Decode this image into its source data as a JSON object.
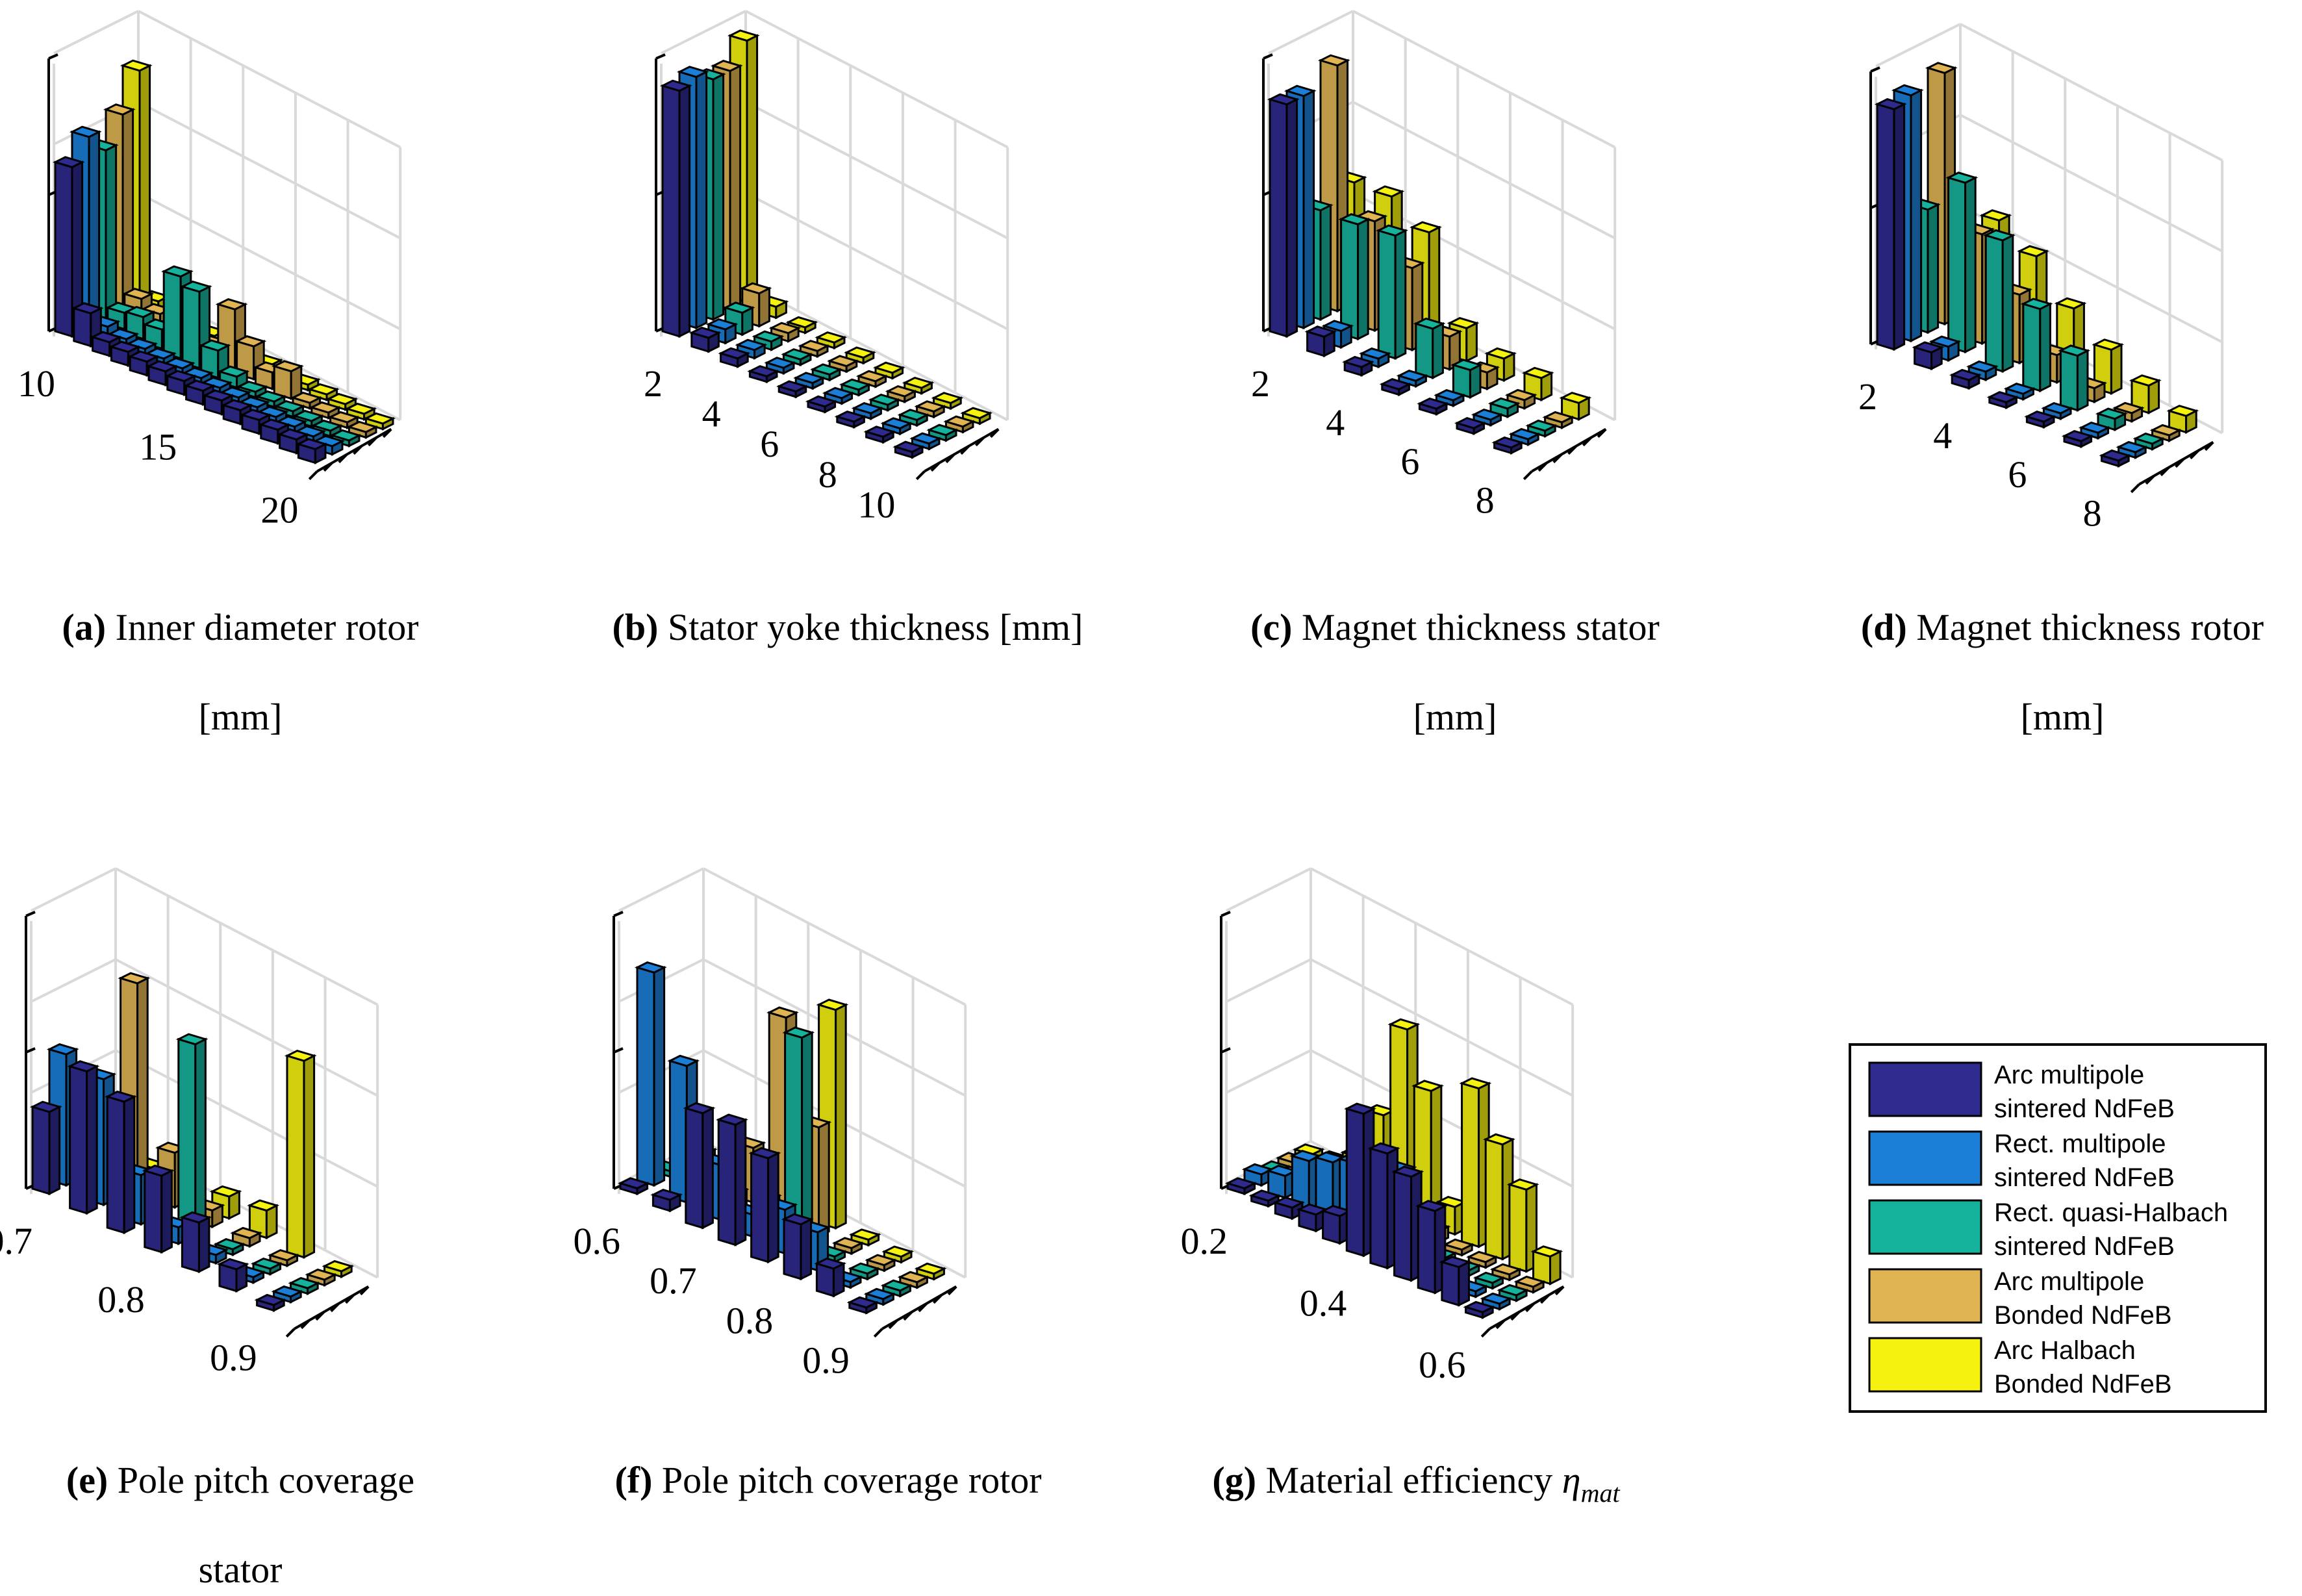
{
  "colors": {
    "Arc multipole sintered NdFeB": "#2e2a8e",
    "Rect. multipole sintered NdFeB": "#1b7fd8",
    "Rect. quasi-Halbach sintered NdFeB": "#15b39b",
    "Arc multipole Bonded NdFeB": "#e0b452",
    "Arc Halbach Bonded NdFeB": "#f5f20f",
    "material-efficiency-extra": "#9cc26a"
  },
  "legend": {
    "items": [
      {
        "line1": "Arc multipole",
        "line2": "sintered NdFeB",
        "color": "#2e2a8e"
      },
      {
        "line1": "Rect. multipole",
        "line2": "sintered NdFeB",
        "color": "#1b7fd8"
      },
      {
        "line1": "Rect. quasi-Halbach",
        "line2": "sintered NdFeB",
        "color": "#15b39b"
      },
      {
        "line1": "Arc multipole",
        "line2": "Bonded NdFeB",
        "color": "#e0b452"
      },
      {
        "line1": "Arc Halbach",
        "line2": "Bonded NdFeB",
        "color": "#f5f20f"
      }
    ]
  },
  "chart_data": [
    {
      "type": "bar3d",
      "caption_letter": "(a)",
      "caption_text": "Inner diameter rotor",
      "caption_line2": "[mm]",
      "x_ticks": [
        "10",
        "15",
        "20"
      ],
      "categories": [
        "8",
        "9",
        "10",
        "11",
        "12",
        "13",
        "14",
        "15",
        "16",
        "17",
        "18",
        "19",
        "20",
        "21"
      ],
      "series": [
        {
          "name": "Arc multipole sintered NdFeB",
          "values": [
            0.62,
            0.12,
            0.05,
            0.05,
            0.05,
            0.05,
            0.05,
            0.05,
            0.05,
            0.05,
            0.05,
            0.05,
            0.05,
            0.05
          ]
        },
        {
          "name": "Rect. multipole sintered NdFeB",
          "values": [
            0.7,
            0.04,
            0.03,
            0.03,
            0.03,
            0.03,
            0.03,
            0.03,
            0.03,
            0.03,
            0.03,
            0.03,
            0.03,
            0.03
          ]
        },
        {
          "name": "Rect. quasi-Halbach sintered NdFeB",
          "values": [
            0.62,
            0.06,
            0.08,
            0.07,
            0.3,
            0.28,
            0.1,
            0.04,
            0.02,
            0.02,
            0.02,
            0.02,
            0.02,
            0.02
          ]
        },
        {
          "name": "Arc multipole Bonded NdFeB",
          "values": [
            0.72,
            0.08,
            0.06,
            0.05,
            0.05,
            0.05,
            0.22,
            0.12,
            0.06,
            0.1,
            0.02,
            0.02,
            0.02,
            0.02
          ]
        },
        {
          "name": "Arc Halbach Bonded NdFeB",
          "values": [
            0.85,
            0.04,
            0.03,
            0.03,
            0.02,
            0.02,
            0.02,
            0.02,
            0.02,
            0.02,
            0.02,
            0.02,
            0.02,
            0.02
          ]
        }
      ]
    },
    {
      "type": "bar3d",
      "caption_letter": "(b)",
      "caption_text": "Stator yoke thickness [mm]",
      "caption_line2": "",
      "x_ticks": [
        "2",
        "4",
        "6",
        "8",
        "10"
      ],
      "categories": [
        "2",
        "3",
        "4",
        "5",
        "6",
        "7",
        "8",
        "9",
        "10"
      ],
      "series": [
        {
          "name": "Arc multipole sintered NdFeB",
          "values": [
            0.9,
            0.05,
            0.03,
            0.02,
            0.02,
            0.02,
            0.02,
            0.02,
            0.02
          ]
        },
        {
          "name": "Rect. multipole sintered NdFeB",
          "values": [
            0.92,
            0.05,
            0.03,
            0.02,
            0.02,
            0.02,
            0.02,
            0.02,
            0.02
          ]
        },
        {
          "name": "Rect. quasi-Halbach sintered NdFeB",
          "values": [
            0.88,
            0.08,
            0.03,
            0.02,
            0.02,
            0.02,
            0.02,
            0.02,
            0.02
          ]
        },
        {
          "name": "Arc multipole Bonded NdFeB",
          "values": [
            0.88,
            0.12,
            0.03,
            0.02,
            0.02,
            0.02,
            0.02,
            0.02,
            0.02
          ]
        },
        {
          "name": "Arc Halbach Bonded NdFeB",
          "values": [
            0.96,
            0.04,
            0.02,
            0.02,
            0.02,
            0.02,
            0.02,
            0.02,
            0.02
          ]
        }
      ]
    },
    {
      "type": "bar3d",
      "caption_letter": "(c)",
      "caption_text": "Magnet thickness stator",
      "caption_line2": "[mm]",
      "x_ticks": [
        "2",
        "4",
        "6",
        "8"
      ],
      "categories": [
        "2",
        "3",
        "4",
        "5",
        "6",
        "7",
        "8"
      ],
      "series": [
        {
          "name": "Arc multipole sintered NdFeB",
          "values": [
            0.85,
            0.07,
            0.03,
            0.02,
            0.02,
            0.02,
            0.02
          ]
        },
        {
          "name": "Rect. multipole sintered NdFeB",
          "values": [
            0.85,
            0.06,
            0.03,
            0.02,
            0.02,
            0.02,
            0.02
          ]
        },
        {
          "name": "Rect. quasi-Halbach sintered NdFeB",
          "values": [
            0.4,
            0.42,
            0.45,
            0.18,
            0.1,
            0.03,
            0.02
          ]
        },
        {
          "name": "Arc multipole Bonded NdFeB",
          "values": [
            0.9,
            0.4,
            0.3,
            0.12,
            0.06,
            0.03,
            0.02
          ]
        },
        {
          "name": "Arc Halbach Bonded NdFeB",
          "values": [
            0.44,
            0.46,
            0.4,
            0.12,
            0.08,
            0.08,
            0.06
          ]
        }
      ]
    },
    {
      "type": "bar3d",
      "caption_letter": "(d)",
      "caption_text": "Magnet thickness rotor",
      "caption_line2": "[mm]",
      "x_ticks": [
        "2",
        "4",
        "6",
        "8"
      ],
      "categories": [
        "2",
        "3",
        "4",
        "5",
        "6",
        "7",
        "8"
      ],
      "series": [
        {
          "name": "Arc multipole sintered NdFeB",
          "values": [
            0.88,
            0.06,
            0.03,
            0.02,
            0.02,
            0.02,
            0.02
          ]
        },
        {
          "name": "Rect. multipole sintered NdFeB",
          "values": [
            0.9,
            0.05,
            0.03,
            0.02,
            0.02,
            0.02,
            0.02
          ]
        },
        {
          "name": "Rect. quasi-Halbach sintered NdFeB",
          "values": [
            0.45,
            0.62,
            0.48,
            0.3,
            0.2,
            0.04,
            0.02
          ]
        },
        {
          "name": "Arc multipole Bonded NdFeB",
          "values": [
            0.92,
            0.4,
            0.25,
            0.1,
            0.05,
            0.03,
            0.02
          ]
        },
        {
          "name": "Arc Halbach Bonded NdFeB",
          "values": [
            0.4,
            0.42,
            0.36,
            0.24,
            0.16,
            0.1,
            0.06
          ]
        }
      ]
    },
    {
      "type": "bar3d",
      "caption_letter": "(e)",
      "caption_text": "Pole pitch coverage",
      "caption_line2": "stator",
      "x_ticks": [
        "0.7",
        "0.8",
        "0.9"
      ],
      "categories": [
        "0.65",
        "0.7",
        "0.75",
        "0.8",
        "0.85",
        "0.9",
        "0.95"
      ],
      "series": [
        {
          "name": "Arc multipole sintered NdFeB",
          "values": [
            0.3,
            0.52,
            0.48,
            0.28,
            0.18,
            0.08,
            0.02
          ]
        },
        {
          "name": "Rect. multipole sintered NdFeB",
          "values": [
            0.48,
            0.46,
            0.18,
            0.06,
            0.03,
            0.02,
            0.02
          ]
        },
        {
          "name": "Rect. quasi-Halbach sintered NdFeB",
          "values": [
            0.02,
            0.04,
            0.1,
            0.7,
            0.02,
            0.02,
            0.02
          ]
        },
        {
          "name": "Arc multipole Bonded NdFeB",
          "values": [
            0.1,
            0.75,
            0.2,
            0.06,
            0.03,
            0.02,
            0.02
          ]
        },
        {
          "name": "Arc Halbach Bonded NdFeB",
          "values": [
            0.02,
            0.04,
            0.06,
            0.08,
            0.1,
            0.72,
            0.02
          ]
        }
      ]
    },
    {
      "type": "bar3d",
      "caption_letter": "(f)",
      "caption_text": "Pole pitch coverage rotor",
      "caption_line2": "",
      "x_ticks": [
        "0.6",
        "0.7",
        "0.8",
        "0.9"
      ],
      "categories": [
        "0.6",
        "0.65",
        "0.7",
        "0.75",
        "0.8",
        "0.85",
        "0.9",
        "0.95"
      ],
      "series": [
        {
          "name": "Arc multipole sintered NdFeB",
          "values": [
            0.02,
            0.04,
            0.42,
            0.44,
            0.38,
            0.2,
            0.1,
            0.02
          ]
        },
        {
          "name": "Rect. multipole sintered NdFeB",
          "values": [
            0.78,
            0.5,
            0.2,
            0.08,
            0.16,
            0.14,
            0.02,
            0.02
          ]
        },
        {
          "name": "Rect. quasi-Halbach sintered NdFeB",
          "values": [
            0.02,
            0.04,
            0.06,
            0.1,
            0.76,
            0.02,
            0.02,
            0.02
          ]
        },
        {
          "name": "Arc multipole Bonded NdFeB",
          "values": [
            0.02,
            0.06,
            0.2,
            0.74,
            0.4,
            0.02,
            0.02,
            0.02
          ]
        },
        {
          "name": "Arc Halbach Bonded NdFeB",
          "values": [
            0.02,
            0.02,
            0.04,
            0.06,
            0.8,
            0.02,
            0.02,
            0.02
          ]
        }
      ]
    },
    {
      "type": "bar3d",
      "caption_letter": "(g)",
      "caption_text": "Material efficiency",
      "caption_symbol": "η",
      "caption_subscript": "mat",
      "caption_line2": "",
      "x_ticks": [
        "0.2",
        "0.4",
        "0.6"
      ],
      "categories": [
        "0.15",
        "0.2",
        "0.25",
        "0.3",
        "0.35",
        "0.4",
        "0.45",
        "0.5",
        "0.55",
        "0.6",
        "0.65"
      ],
      "series": [
        {
          "name": "Arc multipole sintered NdFeB",
          "values": [
            0.02,
            0.02,
            0.04,
            0.06,
            0.1,
            0.52,
            0.42,
            0.38,
            0.3,
            0.14,
            0.02
          ]
        },
        {
          "name": "Rect. multipole sintered NdFeB",
          "values": [
            0.04,
            0.08,
            0.18,
            0.22,
            0.26,
            0.3,
            0.32,
            0.1,
            0.04,
            0.02,
            0.02
          ]
        },
        {
          "name": "Rect. quasi-Halbach sintered NdFeB",
          "values": [
            0.02,
            0.04,
            0.04,
            0.06,
            0.08,
            0.06,
            0.04,
            0.02,
            0.02,
            0.02,
            0.02
          ]
        },
        {
          "name": "Arc multipole Bonded NdFeB",
          "values": [
            0.02,
            0.02,
            0.06,
            0.06,
            0.08,
            0.04,
            0.04,
            0.02,
            0.02,
            0.02,
            0.02
          ]
        },
        {
          "name": "Arc Halbach Bonded NdFeB",
          "values": [
            0.02,
            0.04,
            0.1,
            0.3,
            0.66,
            0.48,
            0.1,
            0.58,
            0.42,
            0.3,
            0.1
          ]
        }
      ]
    }
  ]
}
